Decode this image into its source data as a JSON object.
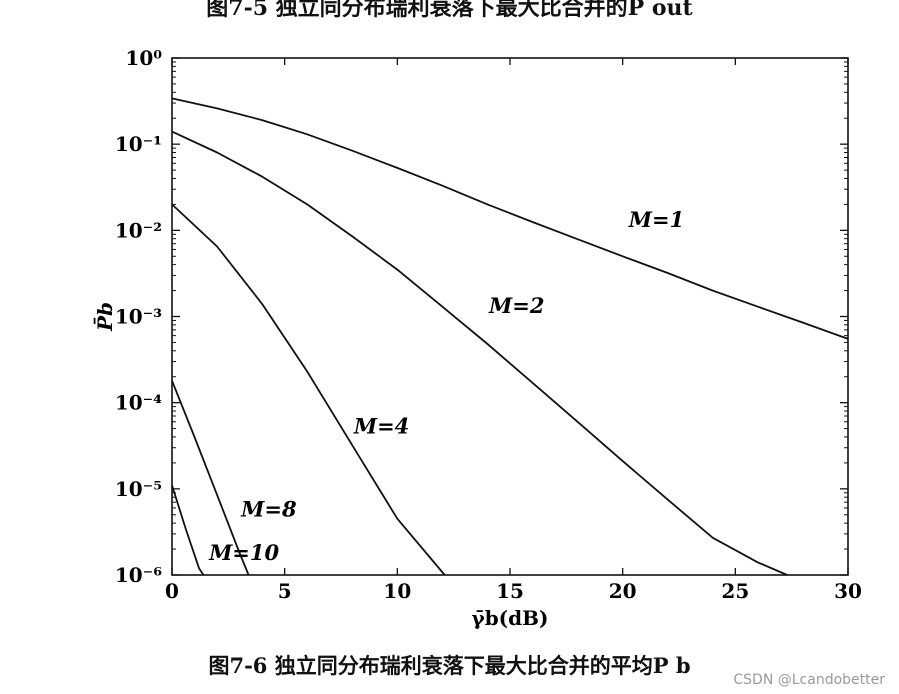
{
  "captions": {
    "top": "图7-5 独立同分布瑞利衰落下最大比合并的P out",
    "bottom": "图7-6 独立同分布瑞利衰落下最大比合并的平均P b"
  },
  "watermark": "CSDN @Lcandobetter",
  "chart_data": {
    "type": "line",
    "title": "",
    "xlabel": "γ̄b(dB)",
    "ylabel": "P̄b",
    "xlim": [
      0,
      30
    ],
    "ylim": [
      1e-06,
      1
    ],
    "yscale": "log",
    "grid": false,
    "xticks": [
      0,
      5,
      10,
      15,
      20,
      25,
      30
    ],
    "xtick_labels": [
      "0",
      "5",
      "10",
      "15",
      "20",
      "25",
      "30"
    ],
    "yticks": [
      1,
      0.1,
      0.01,
      0.001,
      0.0001,
      1e-05,
      1e-06
    ],
    "ytick_labels": [
      "10⁰",
      "10⁻¹",
      "10⁻²",
      "10⁻³",
      "10⁻⁴",
      "10⁻⁵",
      "10⁻⁶"
    ],
    "series": [
      {
        "name": "M=1",
        "label": "M=1",
        "x": [
          0,
          2,
          4,
          6,
          8,
          10,
          12,
          14,
          16,
          18,
          20,
          22,
          24,
          26,
          28,
          30
        ],
        "y": [
          0.34,
          0.26,
          0.19,
          0.13,
          0.084,
          0.053,
          0.033,
          0.02,
          0.0125,
          0.0079,
          0.005,
          0.0032,
          0.002,
          0.0013,
          0.00085,
          0.00055
        ]
      },
      {
        "name": "M=2",
        "label": "M=2",
        "x": [
          0,
          2,
          4,
          6,
          8,
          10,
          12,
          14,
          16,
          18,
          20,
          22,
          24,
          26,
          27.3
        ],
        "y": [
          0.14,
          0.08,
          0.042,
          0.02,
          0.0085,
          0.0035,
          0.0013,
          0.00048,
          0.00017,
          6e-05,
          2.1e-05,
          7.5e-06,
          2.7e-06,
          1.4e-06,
          1e-06
        ]
      },
      {
        "name": "M=4",
        "label": "M=4",
        "x": [
          0,
          2,
          4,
          6,
          8,
          10,
          12.1
        ],
        "y": [
          0.02,
          0.0065,
          0.0014,
          0.00023,
          3.2e-05,
          4.5e-06,
          1e-06
        ]
      },
      {
        "name": "M=8",
        "label": "M=8",
        "x": [
          0,
          1,
          2,
          3,
          3.4
        ],
        "y": [
          0.00018,
          4e-05,
          8.5e-06,
          1.8e-06,
          1e-06
        ]
      },
      {
        "name": "M=10",
        "label": "M=10",
        "x": [
          0,
          0.6,
          1.2,
          1.4
        ],
        "y": [
          1.1e-05,
          3.5e-06,
          1.2e-06,
          1e-06
        ]
      }
    ],
    "annotations": [
      {
        "text": "M=1",
        "x": 21.5,
        "y": 0.011
      },
      {
        "text": "M=2",
        "x": 15.3,
        "y": 0.0011
      },
      {
        "text": "M=4",
        "x": 9.3,
        "y": 4.4e-05
      },
      {
        "text": "M=8",
        "x": 4.3,
        "y": 4.8e-06
      },
      {
        "text": "M=10",
        "x": 3.2,
        "y": 1.5e-06
      }
    ]
  }
}
